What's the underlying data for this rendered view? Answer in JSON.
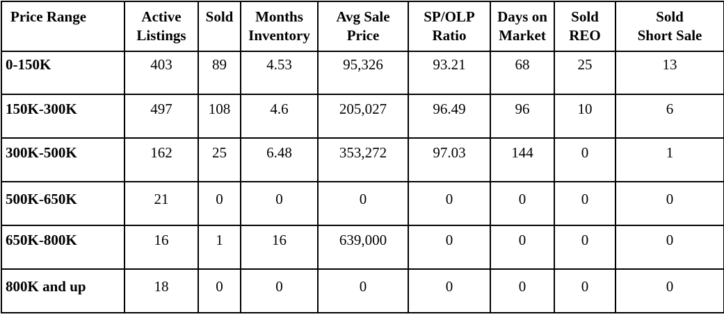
{
  "table": {
    "headers": [
      "Price Range",
      "Active Listings",
      "Sold",
      "Months Inventory",
      "Avg Sale Price",
      "SP/OLP Ratio",
      "Days on Market",
      "Sold REO",
      "Sold Short Sale"
    ],
    "header_lines": [
      [
        "Price Range"
      ],
      [
        "Active",
        "Listings"
      ],
      [
        "Sold"
      ],
      [
        "Months",
        "Inventory"
      ],
      [
        "Avg Sale",
        "Price"
      ],
      [
        "SP/OLP",
        "Ratio"
      ],
      [
        "Days on",
        "Market"
      ],
      [
        "Sold",
        "REO"
      ],
      [
        "Sold",
        "Short Sale"
      ]
    ],
    "rows": [
      [
        "0-150K",
        "403",
        "89",
        "4.53",
        "95,326",
        "93.21",
        "68",
        "25",
        "13"
      ],
      [
        "150K-300K",
        "497",
        "108",
        "4.6",
        "205,027",
        "96.49",
        "96",
        "10",
        "6"
      ],
      [
        "300K-500K",
        "162",
        "25",
        "6.48",
        "353,272",
        "97.03",
        "144",
        "0",
        "1"
      ],
      [
        "500K-650K",
        "21",
        "0",
        "0",
        "0",
        "0",
        "0",
        "0",
        "0"
      ],
      [
        "650K-800K",
        "16",
        "1",
        "16",
        "639,000",
        "0",
        "0",
        "0",
        "0"
      ],
      [
        "800K and up",
        "18",
        "0",
        "0",
        "0",
        "0",
        "0",
        "0",
        "0"
      ]
    ]
  }
}
